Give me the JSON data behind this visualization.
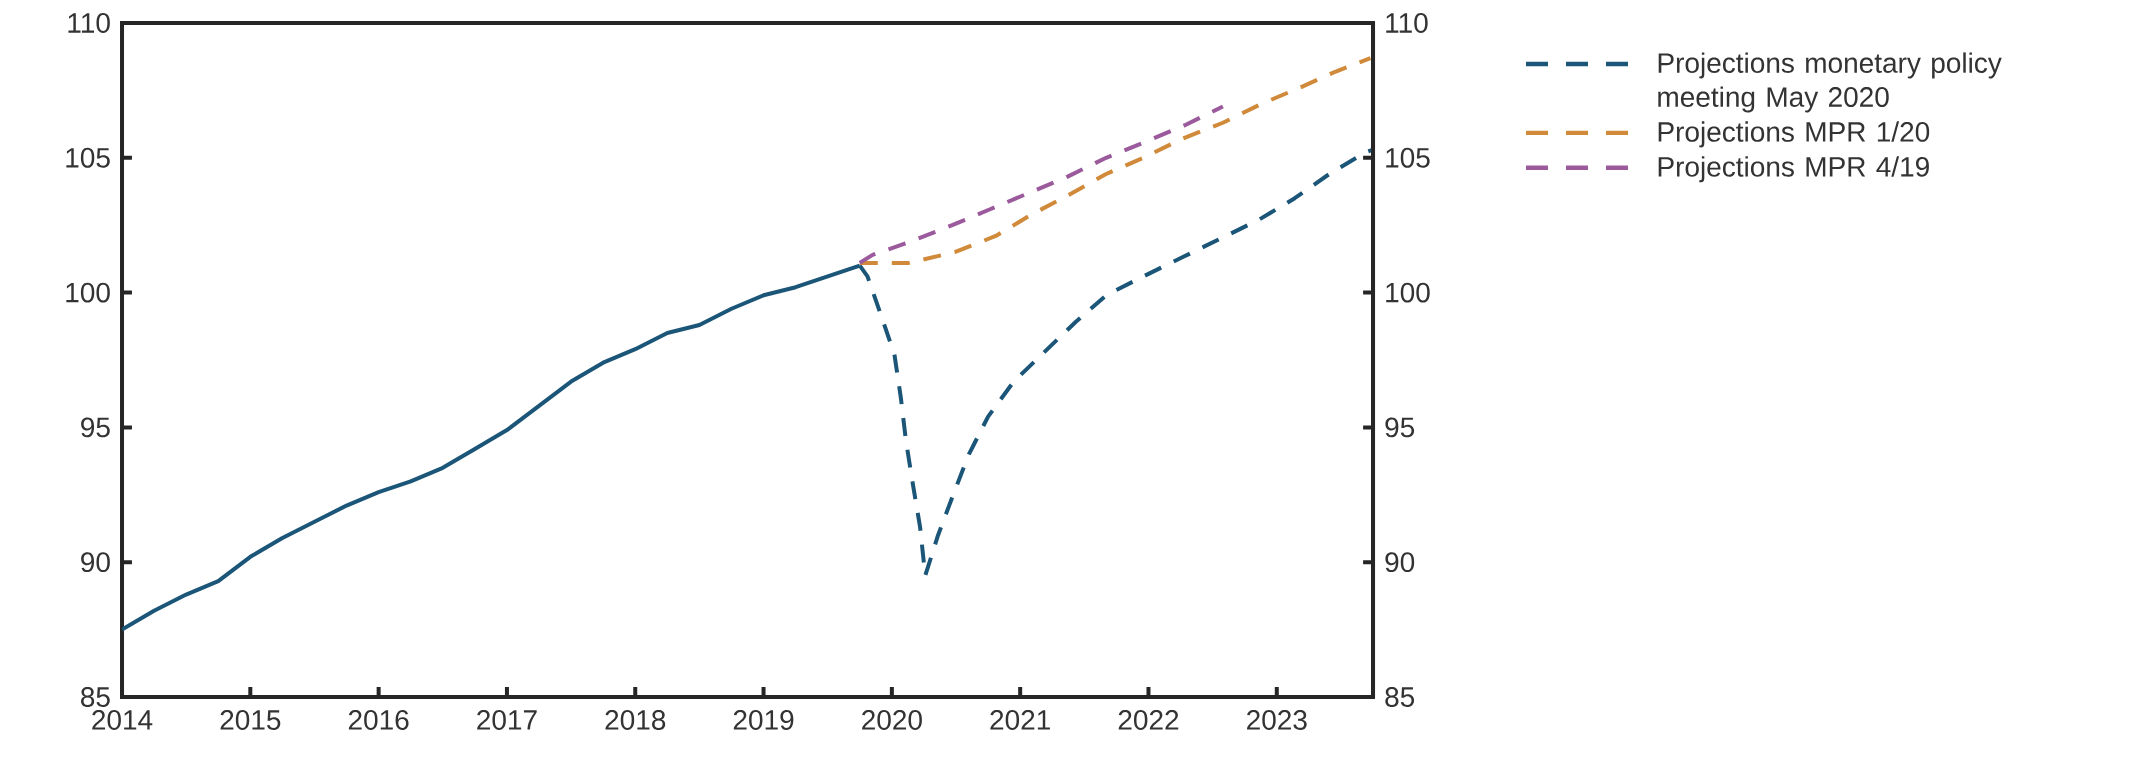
{
  "chart_data": {
    "type": "line",
    "xlim": [
      2014,
      2023.75
    ],
    "xticks": [
      2014,
      2015,
      2016,
      2017,
      2018,
      2019,
      2020,
      2021,
      2022,
      2023
    ],
    "ylim": [
      85,
      110
    ],
    "yticks": [
      85,
      90,
      95,
      100,
      105,
      110
    ],
    "y2lim": [
      85,
      110
    ],
    "y2ticks": [
      85,
      90,
      95,
      100,
      105,
      110
    ],
    "legend": "right",
    "series": [
      {
        "color": "#1b5679",
        "line_style": "solid",
        "x": [
          2014.0,
          2014.25,
          2014.5,
          2014.75,
          2015.0,
          2015.25,
          2015.5,
          2015.75,
          2016.0,
          2016.25,
          2016.5,
          2016.75,
          2017.0,
          2017.25,
          2017.5,
          2017.75,
          2018.0,
          2018.25,
          2018.5,
          2018.75,
          2019.0,
          2019.25,
          2019.5,
          2019.75
        ],
        "values": [
          87.5,
          88.2,
          88.8,
          89.3,
          90.2,
          90.9,
          91.5,
          92.1,
          92.6,
          93.0,
          93.5,
          94.2,
          94.9,
          95.8,
          96.7,
          97.4,
          97.9,
          98.5,
          98.8,
          99.4,
          99.9,
          100.2,
          100.6,
          101.0
        ]
      },
      {
        "name": "Projections monetary policy meeting May 2020",
        "color": "#1b5679",
        "line_style": "dashed",
        "x": [
          2019.75,
          2019.81,
          2019.92,
          2020.02,
          2020.07,
          2020.11,
          2020.16,
          2020.22,
          2020.26,
          2020.36,
          2020.47,
          2020.6,
          2020.75,
          2020.95,
          2021.19,
          2021.43,
          2021.67,
          2021.96,
          2022.26,
          2022.56,
          2022.86,
          2023.14,
          2023.41,
          2023.69,
          2023.75
        ],
        "values": [
          101.0,
          100.6,
          99.1,
          97.7,
          96.1,
          94.5,
          93.0,
          91.3,
          89.5,
          91.0,
          92.4,
          94.0,
          95.4,
          96.7,
          97.8,
          98.9,
          99.9,
          100.6,
          101.3,
          102.0,
          102.7,
          103.5,
          104.4,
          105.2,
          105.3
        ]
      },
      {
        "name": "Projections MPR 1/20",
        "color": "#d08a3a",
        "line_style": "dashed",
        "x": [
          2019.75,
          2020.13,
          2020.49,
          2020.81,
          2021.09,
          2021.37,
          2021.67,
          2021.96,
          2022.26,
          2022.58,
          2022.88,
          2023.18,
          2023.46,
          2023.73
        ],
        "values": [
          101.1,
          101.1,
          101.5,
          102.1,
          102.9,
          103.6,
          104.4,
          105.0,
          105.7,
          106.3,
          107.0,
          107.6,
          108.2,
          108.7
        ]
      },
      {
        "name": "Projections MPR 4/19",
        "color": "#9b5a9b",
        "line_style": "dashed",
        "x": [
          2019.75,
          2019.85,
          2020.15,
          2020.47,
          2020.77,
          2021.07,
          2021.37,
          2021.67,
          2021.98,
          2022.28,
          2022.58
        ],
        "values": [
          101.1,
          101.4,
          101.9,
          102.5,
          103.1,
          103.7,
          104.3,
          105.0,
          105.6,
          106.2,
          106.9
        ]
      }
    ]
  }
}
